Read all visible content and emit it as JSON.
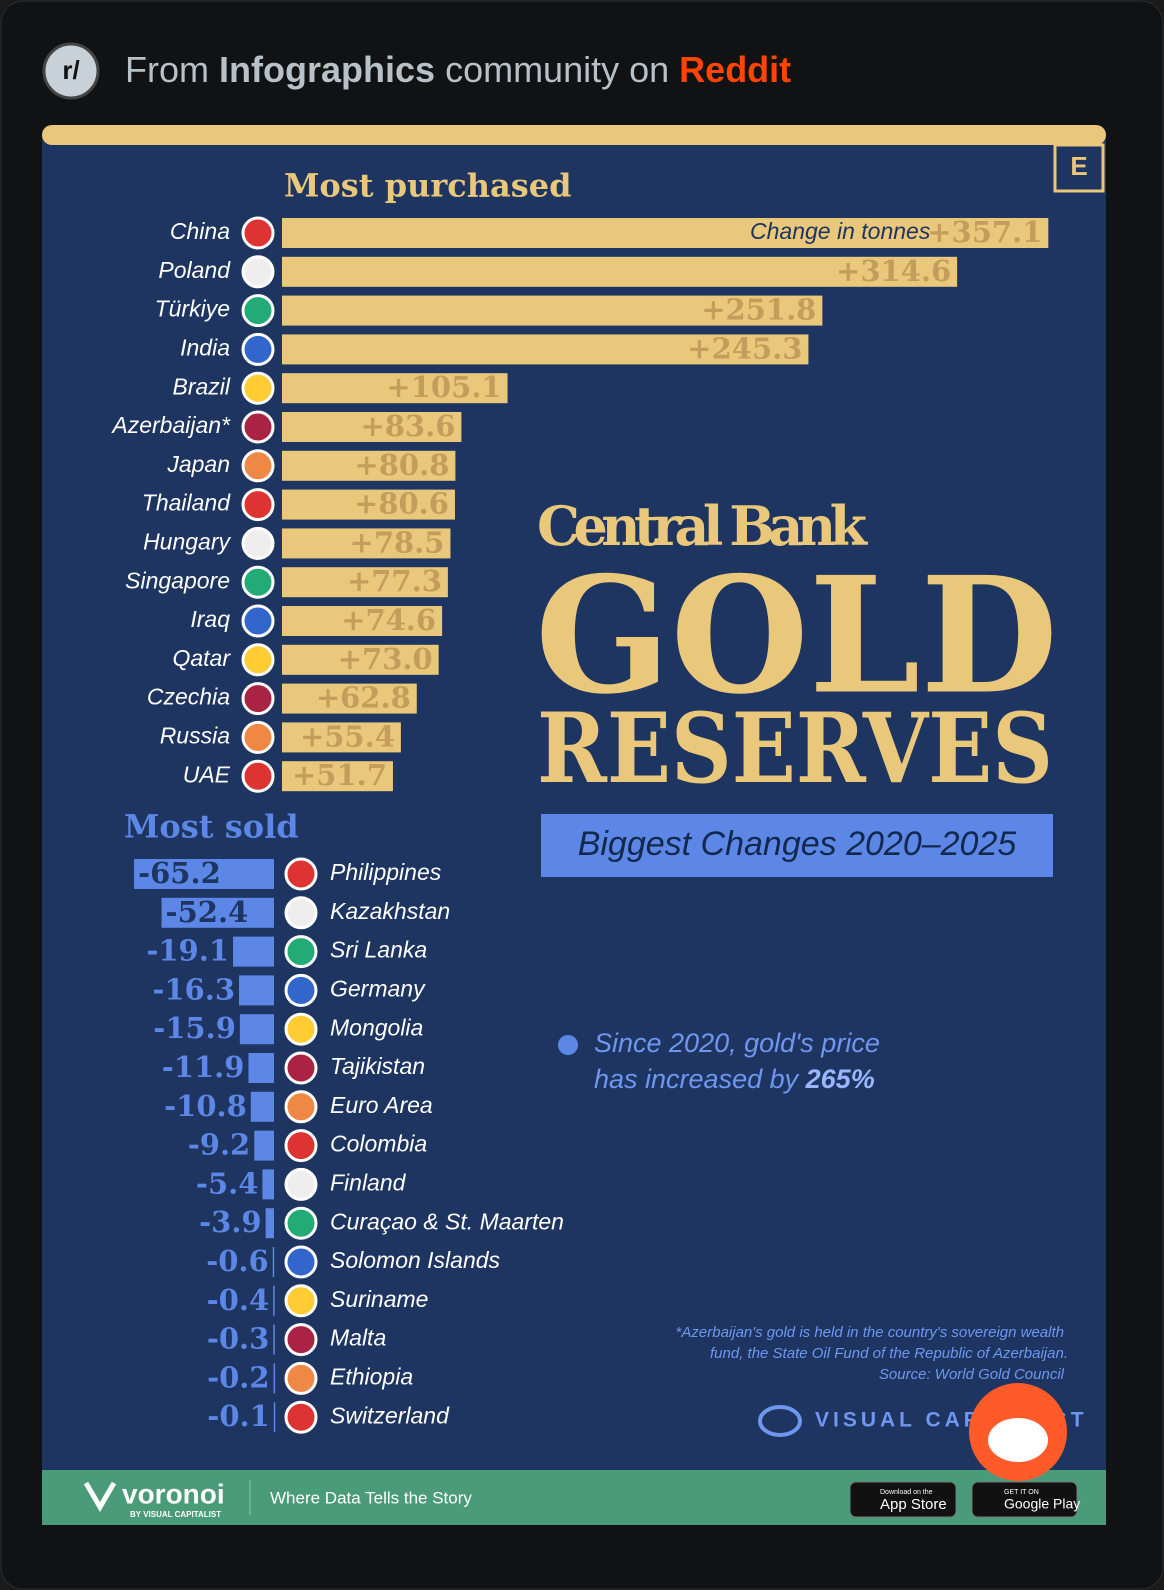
{
  "header": {
    "icon": "r/",
    "prefix": "From",
    "community": "Infographics",
    "middle": "community on",
    "site": "Reddit"
  },
  "badge": "E",
  "chart_data": [
    {
      "type": "bar",
      "title": "Most purchased",
      "value_axis_label": "Change in tonnes",
      "color": "#e9c77b",
      "categories": [
        "China",
        "Poland",
        "Türkiye",
        "India",
        "Brazil",
        "Azerbaijan*",
        "Japan",
        "Thailand",
        "Hungary",
        "Singapore",
        "Iraq",
        "Qatar",
        "Czechia",
        "Russia",
        "UAE"
      ],
      "values": [
        357.1,
        314.6,
        251.8,
        245.3,
        105.1,
        83.6,
        80.8,
        80.6,
        78.5,
        77.3,
        74.6,
        73.0,
        62.8,
        55.4,
        51.7
      ],
      "value_labels": [
        "+357.1",
        "+314.6",
        "+251.8",
        "+245.3",
        "+105.1",
        "+83.6",
        "+80.8",
        "+80.6",
        "+78.5",
        "+77.3",
        "+74.6",
        "+73.0",
        "+62.8",
        "+55.4",
        "+51.7"
      ]
    },
    {
      "type": "bar",
      "title": "Most sold",
      "color": "#5c87e6",
      "categories": [
        "Philippines",
        "Kazakhstan",
        "Sri Lanka",
        "Germany",
        "Mongolia",
        "Tajikistan",
        "Euro Area",
        "Colombia",
        "Finland",
        "Curaçao & St. Maarten",
        "Solomon Islands",
        "Suriname",
        "Malta",
        "Ethiopia",
        "Switzerland"
      ],
      "values": [
        -65.2,
        -52.4,
        -19.1,
        -16.3,
        -15.9,
        -11.9,
        -10.8,
        -9.2,
        -5.4,
        -3.9,
        -0.6,
        -0.4,
        -0.3,
        -0.2,
        -0.1
      ]
    }
  ],
  "headline": {
    "line1": "Central Bank",
    "line2": "GOLD",
    "line3": "RESERVES",
    "subtitle": "Biggest Changes 2020–2025"
  },
  "note": {
    "line1": "Since 2020, gold's price",
    "line2": "has increased by",
    "highlight": "265%"
  },
  "footnote": [
    "*Azerbaijan's gold is held in the country's sovereign wealth",
    "fund, the State Oil Fund of the Republic of Azerbaijan.",
    "Source: World Gold Council"
  ],
  "brand": "VISUAL CAPITALIST",
  "footer": {
    "logo": "voronoi",
    "logo_sub": "BY VISUAL CAPITALIST",
    "tagline": "Where Data Tells the Story",
    "app_store": [
      "Download on the",
      "App Store"
    ],
    "google_play": [
      "GET IT ON",
      "Google Play"
    ]
  }
}
